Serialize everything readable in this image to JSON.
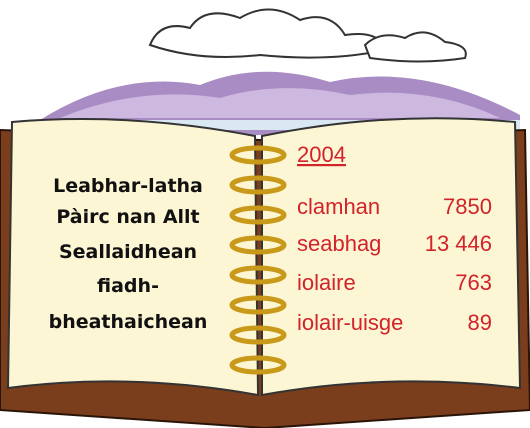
{
  "left_page": {
    "lines": [
      "Leabhar-latha",
      "Pàirc nan Allt",
      "Seallaidhean",
      "fiadh-",
      "bheathaichean"
    ]
  },
  "right_page": {
    "year": "2004",
    "rows": [
      [
        "clamhan",
        "7850"
      ],
      [
        "seabhag",
        "13 446"
      ],
      [
        "iolaire",
        "763"
      ],
      [
        "iolair-uisge",
        "89"
      ]
    ]
  }
}
